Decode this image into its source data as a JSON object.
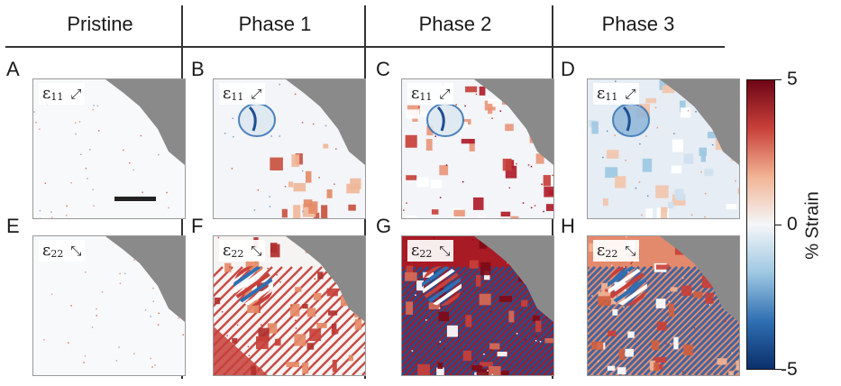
{
  "columns": [
    "Pristine",
    "Phase 1",
    "Phase 2",
    "Phase 3"
  ],
  "panels": [
    {
      "letter": "A",
      "symbol": "ε",
      "sub": "11",
      "arrow": "⤢"
    },
    {
      "letter": "B",
      "symbol": "ε",
      "sub": "11",
      "arrow": "⤢"
    },
    {
      "letter": "C",
      "symbol": "ε",
      "sub": "11",
      "arrow": "⤢"
    },
    {
      "letter": "D",
      "symbol": "ε",
      "sub": "11",
      "arrow": "⤢"
    },
    {
      "letter": "E",
      "symbol": "ε",
      "sub": "22",
      "arrow": "⤡"
    },
    {
      "letter": "F",
      "symbol": "ε",
      "sub": "22",
      "arrow": "⤡"
    },
    {
      "letter": "G",
      "symbol": "ε",
      "sub": "22",
      "arrow": "⤡"
    },
    {
      "letter": "H",
      "symbol": "ε",
      "sub": "22",
      "arrow": "⤡"
    }
  ],
  "colorbar": {
    "title": "% Strain",
    "max_label": "5",
    "mid_label": "0",
    "min_label": "-5",
    "range": [
      -5,
      5
    ],
    "colors": [
      "#0b2f6b",
      "#2f6fb2",
      "#9ec8e2",
      "#f4f6f8",
      "#f2b394",
      "#c8403a",
      "#6e0616"
    ]
  },
  "background_color": "#8a8a8a"
}
